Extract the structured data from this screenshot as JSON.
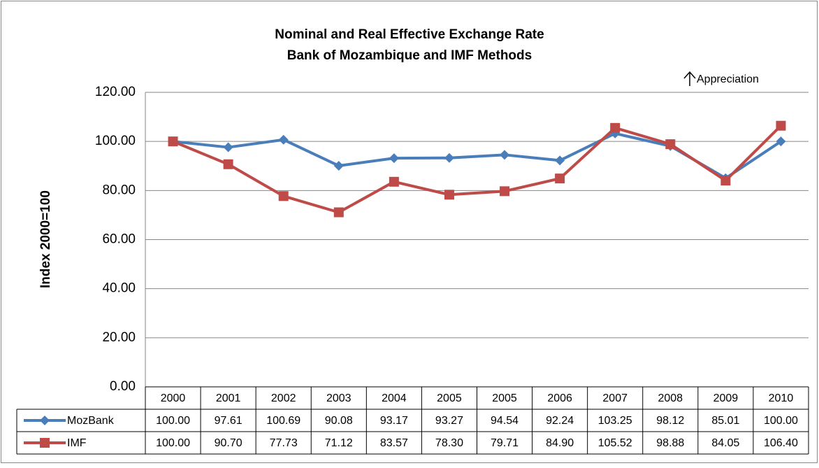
{
  "chart_data": {
    "type": "line",
    "title": "Nominal and Real Effective Exchange Rate",
    "subtitle": "Bank of Mozambique and IMF Methods",
    "annotation": "Appreciation",
    "y_label": "Index 2000=100",
    "categories": [
      "2000",
      "2001",
      "2002",
      "2003",
      "2004",
      "2005",
      "2005",
      "2006",
      "2007",
      "2008",
      "2009",
      "2010"
    ],
    "series": [
      {
        "name": "MozBank",
        "color": "#4a7ebb",
        "marker": "diamond",
        "values": [
          100.0,
          97.61,
          100.69,
          90.08,
          93.17,
          93.27,
          94.54,
          92.24,
          103.25,
          98.12,
          85.01,
          100.0
        ],
        "value_labels": [
          "100.00",
          "97.61",
          "100.69",
          "90.08",
          "93.17",
          "93.27",
          "94.54",
          "92.24",
          "103.25",
          "98.12",
          "85.01",
          "100.00"
        ]
      },
      {
        "name": "IMF",
        "color": "#be4b48",
        "marker": "square",
        "values": [
          100.0,
          90.7,
          77.73,
          71.12,
          83.57,
          78.3,
          79.71,
          84.9,
          105.52,
          98.88,
          84.05,
          106.4
        ],
        "value_labels": [
          "100.00",
          "90.70",
          "77.73",
          "71.12",
          "83.57",
          "78.30",
          "79.71",
          "84.90",
          "105.52",
          "98.88",
          "84.05",
          "106.40"
        ]
      }
    ],
    "ylim": [
      0,
      120
    ],
    "yticks": [
      {
        "value": 0,
        "label": "0.00"
      },
      {
        "value": 20,
        "label": "20.00"
      },
      {
        "value": 40,
        "label": "40.00"
      },
      {
        "value": 60,
        "label": "60.00"
      },
      {
        "value": 80,
        "label": "80.00"
      },
      {
        "value": 100,
        "label": "100.00"
      },
      {
        "value": 120,
        "label": "120.00"
      }
    ],
    "grid": true
  }
}
